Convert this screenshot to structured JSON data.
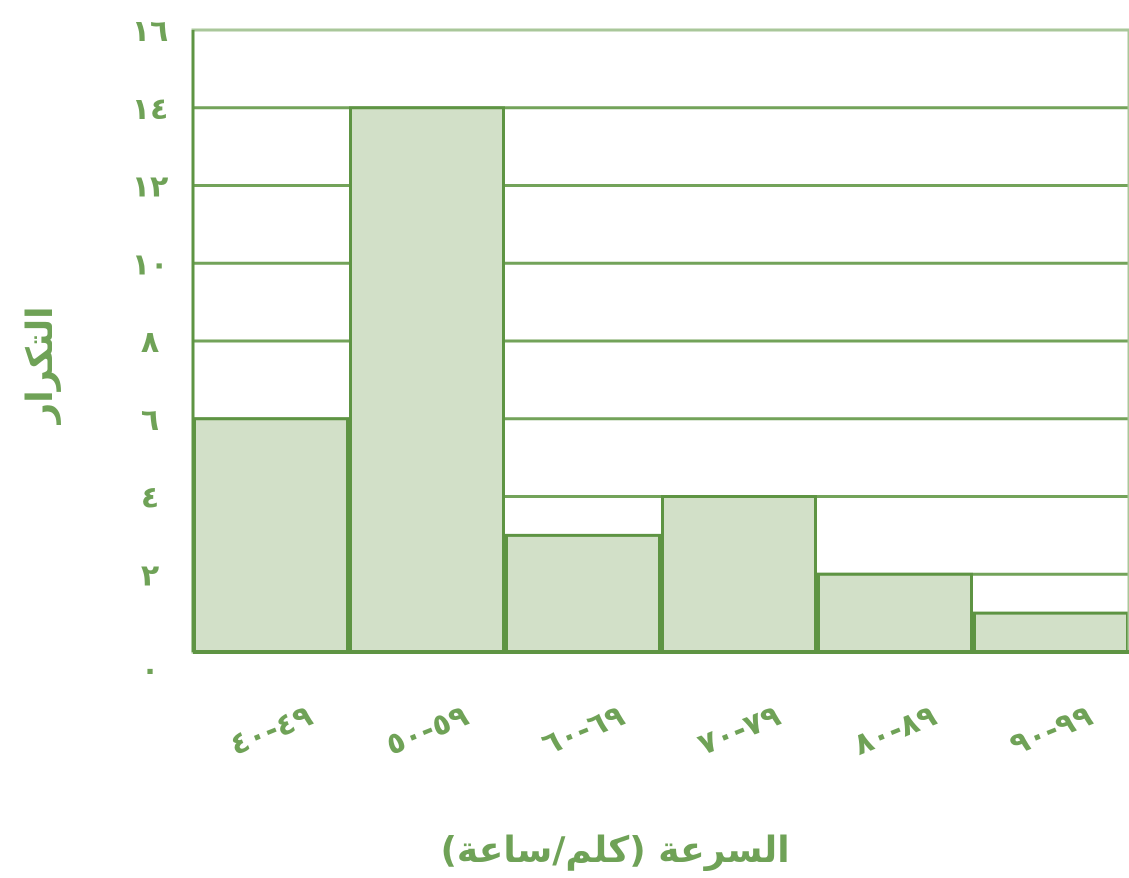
{
  "chart_data": {
    "type": "bar",
    "histogram": true,
    "title": "",
    "xlabel": "السرعة (كلم/ساعة)",
    "ylabel": "التكرار",
    "categories": [
      "٤٩-٤٠",
      "٥٩-٥٠",
      "٦٩-٦٠",
      "٧٩-٧٠",
      "٨٩-٨٠",
      "٩٩-٩٠"
    ],
    "values": [
      6,
      14,
      3,
      4,
      2,
      1
    ],
    "ylim": [
      0,
      16
    ],
    "yticks": [
      0,
      2,
      4,
      6,
      8,
      10,
      12,
      14,
      16
    ],
    "ytick_labels": [
      "٠",
      "٢",
      "٤",
      "٦",
      "٨",
      "١٠",
      "١٢",
      "١٤",
      "١٦"
    ],
    "grid": "horizontal",
    "legend": "none"
  },
  "colors": {
    "bar_fill": "#d2e0c8",
    "bar_stroke": "#5e9443",
    "grid_line": "#73a35a",
    "frame_line": "#a9c79a",
    "text": "#6fa257"
  }
}
